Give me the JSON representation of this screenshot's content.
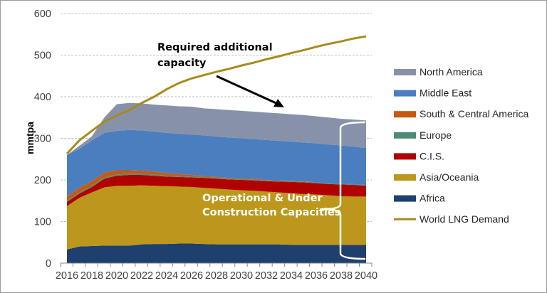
{
  "chart_data": {
    "type": "area",
    "stacked": true,
    "ylabel": "mmtpa",
    "xlabel": "",
    "ylim": [
      0,
      600
    ],
    "yticks": [
      0,
      100,
      200,
      300,
      400,
      500,
      600
    ],
    "grid": "horizontal dashed",
    "legend": "right",
    "x": [
      2016,
      2017,
      2018,
      2019,
      2020,
      2021,
      2022,
      2023,
      2024,
      2025,
      2026,
      2027,
      2028,
      2029,
      2030,
      2031,
      2032,
      2033,
      2034,
      2035,
      2036,
      2037,
      2038,
      2039,
      2040
    ],
    "xtick_labels": [
      "2016",
      "2018",
      "2020",
      "2022",
      "2024",
      "2026",
      "2028",
      "2030",
      "2032",
      "2034",
      "2036",
      "2038",
      "2040"
    ],
    "series": [
      {
        "name": "Africa",
        "color": "#1f3f6e",
        "values": [
          33,
          40,
          41,
          42,
          42,
          42,
          45,
          46,
          46,
          47,
          47,
          46,
          45,
          45,
          45,
          45,
          45,
          45,
          44,
          44,
          44,
          44,
          44,
          44,
          44
        ]
      },
      {
        "name": "Asia/Oceania",
        "color": "#bc971b",
        "values": [
          104,
          117,
          129,
          140,
          144,
          144,
          142,
          140,
          139,
          137,
          136,
          135,
          134,
          132,
          130,
          129,
          127,
          125,
          124,
          122,
          121,
          119,
          117,
          116,
          116
        ]
      },
      {
        "name": "C.I.S.",
        "color": "#b00000",
        "values": [
          10,
          10,
          13,
          21,
          24,
          26,
          25,
          24,
          23,
          23,
          23,
          24,
          24,
          24,
          25,
          25,
          25,
          26,
          27,
          28,
          27,
          27,
          28,
          28,
          26
        ]
      },
      {
        "name": "Europe",
        "color": "#4e8a78",
        "values": [
          3,
          3,
          3,
          3,
          3,
          3,
          3,
          3,
          2,
          2,
          2,
          2,
          2,
          2,
          2,
          2,
          2,
          2,
          2,
          2,
          2,
          2,
          2,
          2,
          2
        ]
      },
      {
        "name": "South & Central America",
        "color": "#c55a11",
        "values": [
          10,
          11,
          11,
          11,
          10,
          8,
          7,
          7,
          6,
          5,
          4,
          3,
          2,
          2,
          2,
          2,
          1,
          1,
          1,
          1,
          0,
          0,
          0,
          0,
          0
        ]
      },
      {
        "name": "Middle East",
        "color": "#4a7ebf",
        "values": [
          100,
          94,
          98,
          96,
          95,
          97,
          97,
          96,
          97,
          97,
          97,
          97,
          97,
          97,
          96,
          95,
          96,
          95,
          94,
          93,
          94,
          93,
          92,
          90,
          89
        ]
      },
      {
        "name": "North America",
        "color": "#8792aa",
        "values": [
          0,
          7,
          10,
          37,
          64,
          65,
          65,
          65,
          66,
          66,
          67,
          65,
          66,
          66,
          66,
          66,
          66,
          66,
          66,
          66,
          65,
          65,
          64,
          65,
          66
        ]
      }
    ],
    "line": {
      "name": "World LNG Demand",
      "color": "#a88a1e",
      "values": [
        263,
        295,
        318,
        340,
        355,
        368,
        385,
        400,
        418,
        433,
        444,
        452,
        460,
        467,
        475,
        482,
        490,
        497,
        505,
        512,
        520,
        527,
        533,
        540,
        545
      ]
    },
    "legend_order": [
      "North America",
      "Middle East",
      "South & Central America",
      "Europe",
      "C.I.S.",
      "Asia/Oceania",
      "Africa",
      "World LNG Demand"
    ],
    "annotations": {
      "required_line1": "Required additional",
      "required_line2": "capacity",
      "operational_line1": "Operational & Under",
      "operational_line2": "Construction Capacities"
    }
  }
}
